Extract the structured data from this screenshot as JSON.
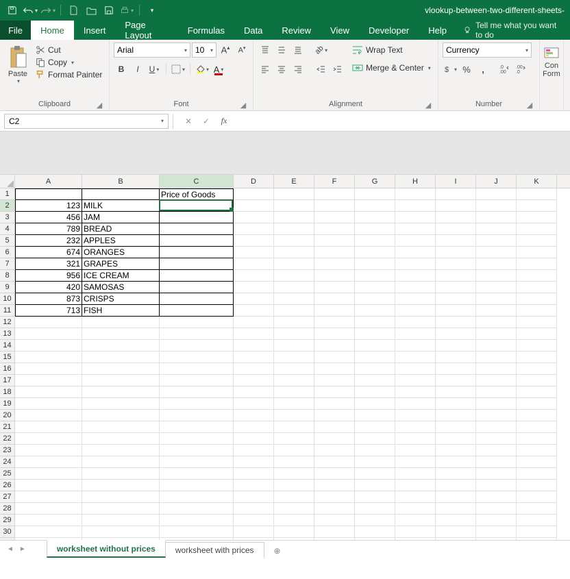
{
  "title": "vlookup-between-two-different-sheets-",
  "qat": {
    "undo": "↩",
    "redo": "↪"
  },
  "tabs": {
    "file": "File",
    "home": "Home",
    "insert": "Insert",
    "page_layout": "Page Layout",
    "formulas": "Formulas",
    "data": "Data",
    "review": "Review",
    "view": "View",
    "developer": "Developer",
    "help": "Help"
  },
  "tell_me": "Tell me what you want to do",
  "ribbon": {
    "clipboard": {
      "paste": "Paste",
      "cut": "Cut",
      "copy": "Copy",
      "format_painter": "Format Painter",
      "label": "Clipboard"
    },
    "font": {
      "name": "Arial",
      "size": "10",
      "label": "Font",
      "bold": "B",
      "italic": "I",
      "underline": "U"
    },
    "alignment": {
      "wrap": "Wrap Text",
      "merge": "Merge & Center",
      "label": "Alignment"
    },
    "number": {
      "format": "Currency",
      "label": "Number"
    },
    "cond": {
      "line1": "Con",
      "line2": "Form"
    }
  },
  "name_box": "C2",
  "formula_bar_value": "",
  "columns": [
    "A",
    "B",
    "C",
    "D",
    "E",
    "F",
    "G",
    "H",
    "I",
    "J",
    "K"
  ],
  "sheet": {
    "header_c1": "Price of Goods",
    "rows": [
      {
        "a": "123",
        "b": "MILK"
      },
      {
        "a": "456",
        "b": "JAM"
      },
      {
        "a": "789",
        "b": "BREAD"
      },
      {
        "a": "232",
        "b": "APPLES"
      },
      {
        "a": "674",
        "b": "ORANGES"
      },
      {
        "a": "321",
        "b": "GRAPES"
      },
      {
        "a": "956",
        "b": "ICE CREAM"
      },
      {
        "a": "420",
        "b": "SAMOSAS"
      },
      {
        "a": "873",
        "b": "CRISPS"
      },
      {
        "a": "713",
        "b": "FISH"
      }
    ],
    "row_count": 31,
    "selected_cell": "C2"
  },
  "sheet_tabs": {
    "active": "worksheet without prices",
    "other": "worksheet with prices"
  },
  "colors": {
    "ribbon_green": "#0d7242",
    "excel_green": "#217346"
  }
}
